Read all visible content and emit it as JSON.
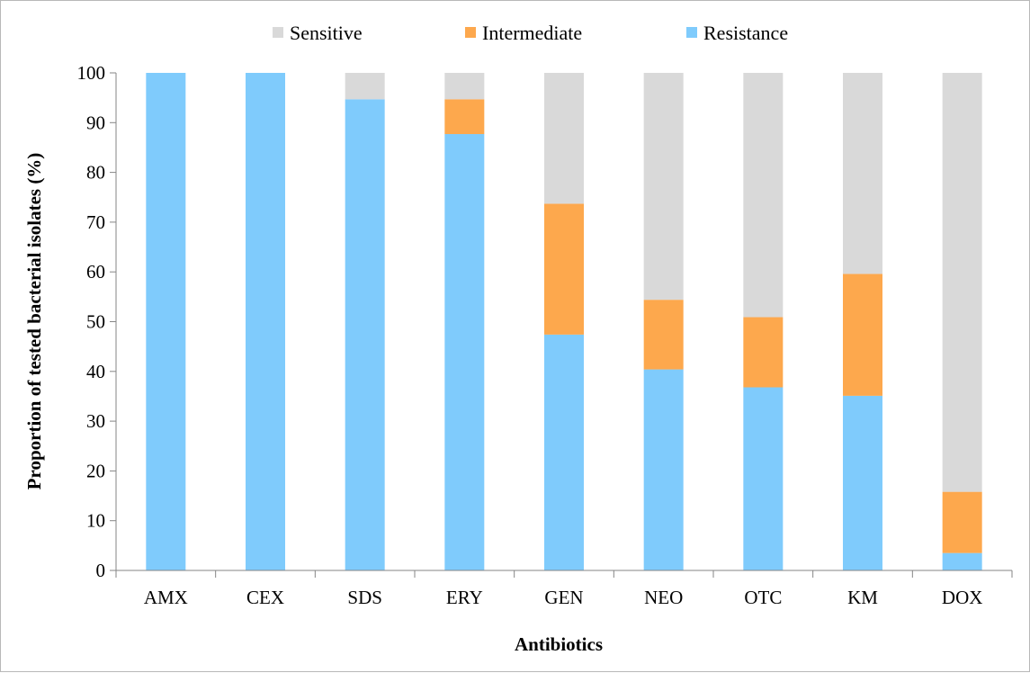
{
  "chart_data": {
    "type": "bar",
    "stacked": true,
    "title": "",
    "xlabel": "Antibiotics",
    "ylabel": "Proportion of tested bacterial isolates (%)",
    "ylim": [
      0,
      100
    ],
    "yticks": [
      0,
      10,
      20,
      30,
      40,
      50,
      60,
      70,
      80,
      90,
      100
    ],
    "categories": [
      "AMX",
      "CEX",
      "SDS",
      "ERY",
      "GEN",
      "NEO",
      "OTC",
      "KM",
      "DOX"
    ],
    "series": [
      {
        "name": "Resistance",
        "color": "#7fcbfc",
        "values": [
          100,
          100,
          94.7,
          87.7,
          47.4,
          40.4,
          36.8,
          35.1,
          3.5
        ]
      },
      {
        "name": "Intermediate",
        "color": "#fda84d",
        "values": [
          0,
          0,
          0,
          7.0,
          26.3,
          14.0,
          14.1,
          24.5,
          12.3
        ]
      },
      {
        "name": "Sensitive",
        "color": "#d9d9d9",
        "values": [
          0,
          0,
          5.3,
          5.3,
          26.3,
          45.6,
          49.1,
          40.4,
          84.2
        ]
      }
    ],
    "legend": {
      "position": "top",
      "order": [
        "Sensitive",
        "Intermediate",
        "Resistance"
      ]
    },
    "grid": false
  }
}
